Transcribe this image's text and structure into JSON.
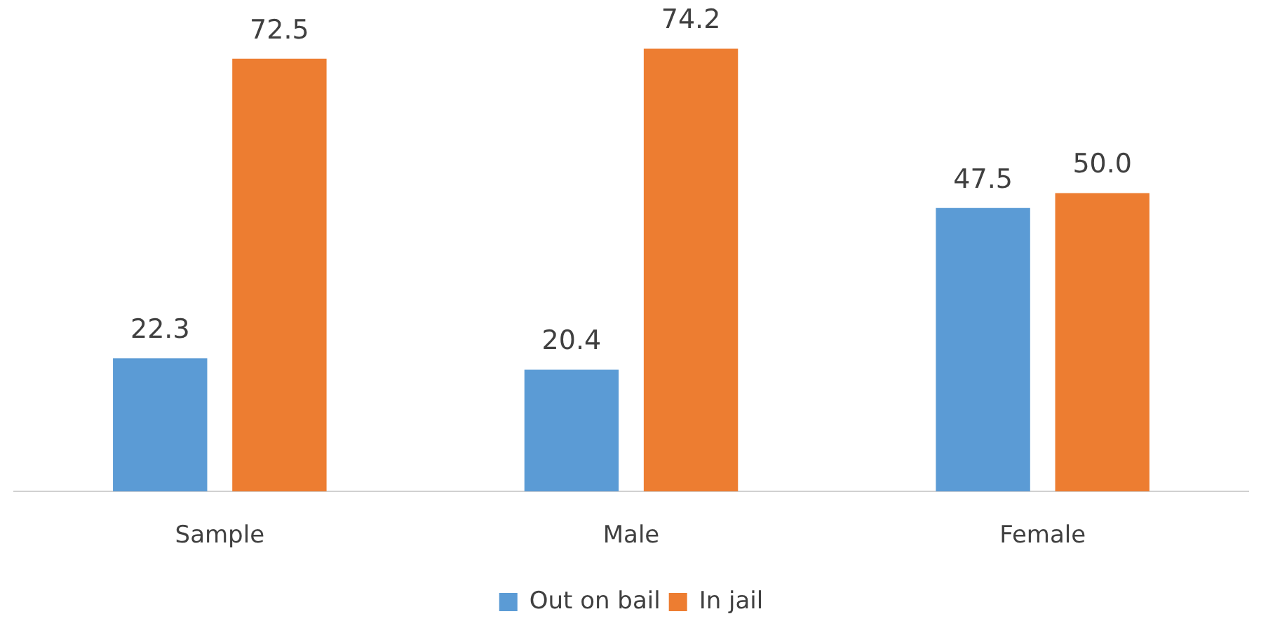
{
  "chart_data": {
    "type": "bar",
    "categories": [
      "Sample",
      "Male",
      "Female"
    ],
    "series": [
      {
        "name": "Out on bail",
        "color": "#5b9bd5",
        "values": [
          22.3,
          20.4,
          47.5
        ],
        "value_labels": [
          "22.3",
          "20.4",
          "47.5"
        ]
      },
      {
        "name": "In jail",
        "color": "#ed7d31",
        "values": [
          72.5,
          74.2,
          50.0
        ],
        "value_labels": [
          "72.5",
          "74.2",
          "50.0"
        ]
      }
    ],
    "legend": "bottom",
    "grid": false
  }
}
